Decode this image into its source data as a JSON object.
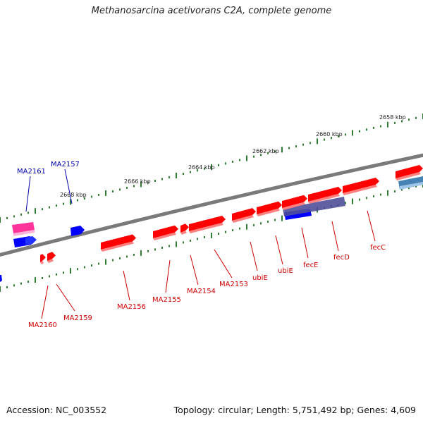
{
  "title": "Methanosarcina acetivorans C2A, complete genome",
  "footer": {
    "accession": "Accession: NC_003552",
    "summary": "Topology: circular; Length: 5,751,492 bp; Genes: 4,609"
  },
  "colors": {
    "backbone": "#808080",
    "tick": "#2e7d32",
    "gene_red": "#ff0000",
    "gene_blue": "#0000ff",
    "gene_pink": "#ff3399",
    "gene_purple": "#4f4f99",
    "gene_steel": "#4682b4",
    "label_red": "#cc0000",
    "label_blue": "#0000aa"
  },
  "scale_labels": [
    "2658 kbp",
    "2660 kbp",
    "2662 kbp",
    "2664 kbp",
    "2666 kbp",
    "2668 kbp"
  ],
  "gene_labels": [
    "MA2161",
    "MA2157",
    "MA2160",
    "MA2159",
    "MA2156",
    "MA2155",
    "MA2154",
    "MA2153",
    "ubiE",
    "ubiE",
    "fecE",
    "fecD",
    "fecC"
  ]
}
